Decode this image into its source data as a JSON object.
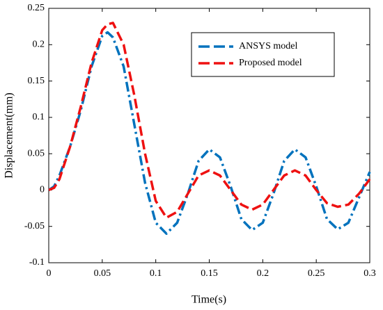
{
  "chart_data": {
    "type": "line",
    "x_label": "Time(s)",
    "y_label": "Displacement(mm)",
    "x": [
      0,
      0.005,
      0.01,
      0.02,
      0.03,
      0.04,
      0.05,
      0.055,
      0.06,
      0.07,
      0.08,
      0.09,
      0.1,
      0.11,
      0.12,
      0.13,
      0.14,
      0.15,
      0.16,
      0.17,
      0.18,
      0.19,
      0.2,
      0.21,
      0.22,
      0.23,
      0.24,
      0.25,
      0.26,
      0.27,
      0.28,
      0.29,
      0.3
    ],
    "series": [
      {
        "name": "ANSYS model",
        "color": "#0072bd",
        "dash": "14 5 3 5",
        "values": [
          0,
          0.005,
          0.02,
          0.06,
          0.11,
          0.17,
          0.212,
          0.217,
          0.21,
          0.17,
          0.09,
          0.01,
          -0.045,
          -0.06,
          -0.045,
          -0.005,
          0.04,
          0.056,
          0.045,
          0.005,
          -0.04,
          -0.055,
          -0.045,
          -0.005,
          0.04,
          0.056,
          0.045,
          0.005,
          -0.04,
          -0.054,
          -0.045,
          -0.01,
          0.025
        ]
      },
      {
        "name": "Proposed model",
        "color": "#ee1111",
        "dash": "14 6",
        "values": [
          0,
          0.003,
          0.015,
          0.06,
          0.115,
          0.175,
          0.22,
          0.228,
          0.23,
          0.2,
          0.13,
          0.05,
          -0.015,
          -0.038,
          -0.03,
          -0.005,
          0.02,
          0.027,
          0.02,
          0,
          -0.02,
          -0.027,
          -0.02,
          0,
          0.02,
          0.027,
          0.02,
          0,
          -0.018,
          -0.023,
          -0.02,
          -0.005,
          0.015
        ]
      }
    ],
    "xlim": [
      0,
      0.3
    ],
    "xticks": [
      0,
      0.05,
      0.1,
      0.15,
      0.2,
      0.25,
      0.3
    ],
    "ylim": [
      -0.1,
      0.25
    ],
    "yticks": [
      -0.1,
      -0.05,
      0,
      0.05,
      0.1,
      0.15,
      0.2,
      0.25
    ],
    "legend": "upper right",
    "grid": false
  }
}
